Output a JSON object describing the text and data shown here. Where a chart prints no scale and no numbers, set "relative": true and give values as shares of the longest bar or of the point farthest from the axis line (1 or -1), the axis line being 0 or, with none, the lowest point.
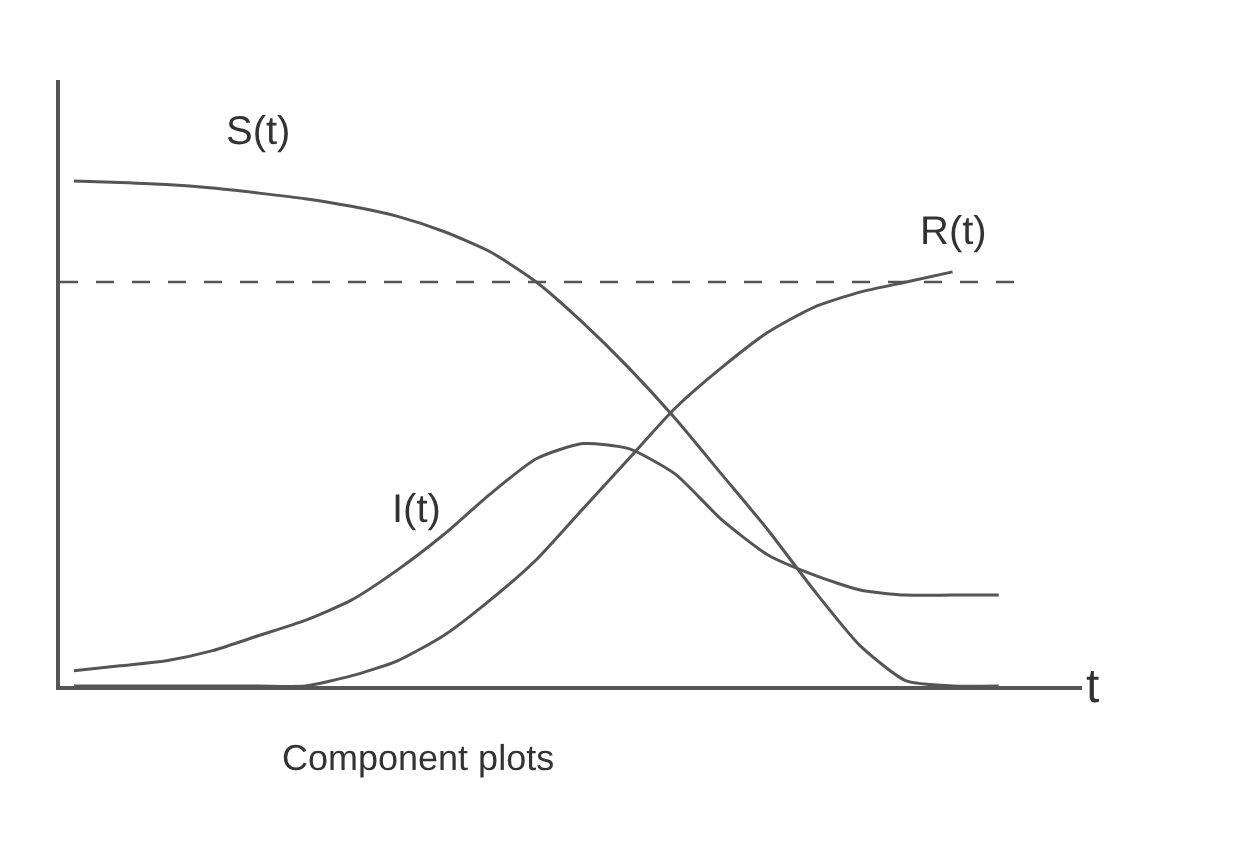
{
  "chart_data": {
    "type": "line",
    "relative": true,
    "xlabel": "t",
    "annotations": [
      "Component plots"
    ],
    "legend": false,
    "line_style": "solid",
    "marker": "none",
    "categories": [
      null,
      null,
      null,
      null,
      null,
      null,
      null,
      null,
      null,
      null,
      null,
      null,
      null,
      null,
      null,
      null,
      null,
      null,
      null,
      null,
      null
    ],
    "series": [
      {
        "name": "S(t)",
        "color": "#555555",
        "values": [
          1.0,
          0.997,
          0.993,
          0.986,
          0.976,
          0.965,
          0.95,
          0.93,
          0.9,
          0.86,
          0.8,
          0.72,
          0.63,
          0.53,
          0.42,
          0.31,
          0.19,
          0.08,
          0.01,
          0,
          0
        ]
      },
      {
        "name": "I(t)",
        "color": "#555555",
        "values": [
          0.03,
          0.04,
          0.05,
          0.07,
          0.1,
          0.13,
          0.17,
          0.23,
          0.3,
          0.38,
          0.45,
          0.48,
          0.47,
          0.42,
          0.33,
          0.26,
          0.22,
          0.19,
          0.18,
          0.18,
          0.18
        ]
      },
      {
        "name": "R(t)",
        "color": "#555555",
        "values": [
          0,
          0,
          0,
          0,
          0,
          0,
          0.02,
          0.05,
          0.1,
          0.17,
          0.25,
          0.35,
          0.45,
          0.55,
          0.63,
          0.7,
          0.75,
          0.78,
          0.8,
          0.82,
          null
        ]
      }
    ],
    "ref_lines": [
      {
        "axis": "y",
        "value": 0.8,
        "color": "#555555",
        "line_style": "dashed"
      }
    ]
  }
}
